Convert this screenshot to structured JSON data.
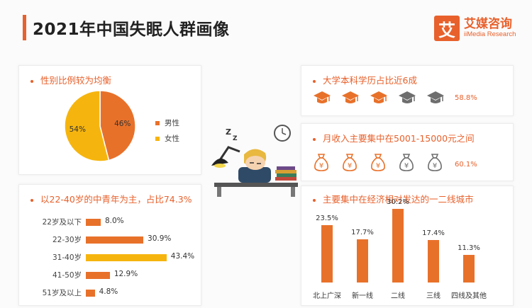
{
  "header": {
    "title": "2021年中国失眠人群画像"
  },
  "brand": {
    "logo_char": "艾",
    "name": "艾媒咨询",
    "sub": "iiMedia Research",
    "color": "#e8612c"
  },
  "colors": {
    "orange": "#e8712a",
    "yellow": "#f6b50e",
    "icon_gray": "#6e6e6e"
  },
  "gender_card": {
    "title": "性别比例较为均衡"
  },
  "age_card": {
    "title": "以22-40岁的中青年为主，占比74.3%"
  },
  "edu_card": {
    "title": "大学本科学历占比近6成",
    "value_label": "58.8%",
    "filled_icons": 3,
    "total_icons": 5,
    "icon": "graduation-cap-icon"
  },
  "income_card": {
    "title": "月收入主要集中在5001-15000元之间",
    "value_label": "60.1%",
    "filled_icons": 3,
    "total_icons": 5,
    "icon": "money-bag-icon",
    "icon_glyph": "¥"
  },
  "city_card": {
    "title": "主要集中在经济相对发达的一二线城市"
  },
  "chart_data": [
    {
      "type": "pie",
      "categories": [
        "男性",
        "女性"
      ],
      "values": [
        46,
        54
      ],
      "value_labels": [
        "46%",
        "54%"
      ],
      "colors": [
        "#e8712a",
        "#f6b50e"
      ],
      "legend_position": "right"
    },
    {
      "type": "bar",
      "orientation": "horizontal",
      "categories": [
        "22岁及以下",
        "22-30岁",
        "31-40岁",
        "41-50岁",
        "51岁及以上"
      ],
      "values": [
        8.0,
        30.9,
        43.4,
        12.9,
        4.8
      ],
      "value_labels": [
        "8.0%",
        "30.9%",
        "43.4%",
        "12.9%",
        "4.8%"
      ],
      "highlight_index": 2,
      "xlim": [
        0,
        45
      ]
    },
    {
      "type": "bar",
      "categories": [
        "北上广深",
        "新一线",
        "二线",
        "三线",
        "四线及其他"
      ],
      "values": [
        23.5,
        17.7,
        30.2,
        17.4,
        11.3
      ],
      "value_labels": [
        "23.5%",
        "17.7%",
        "30.2%",
        "17.4%",
        "11.3%"
      ],
      "ylim": [
        0,
        32
      ]
    }
  ]
}
